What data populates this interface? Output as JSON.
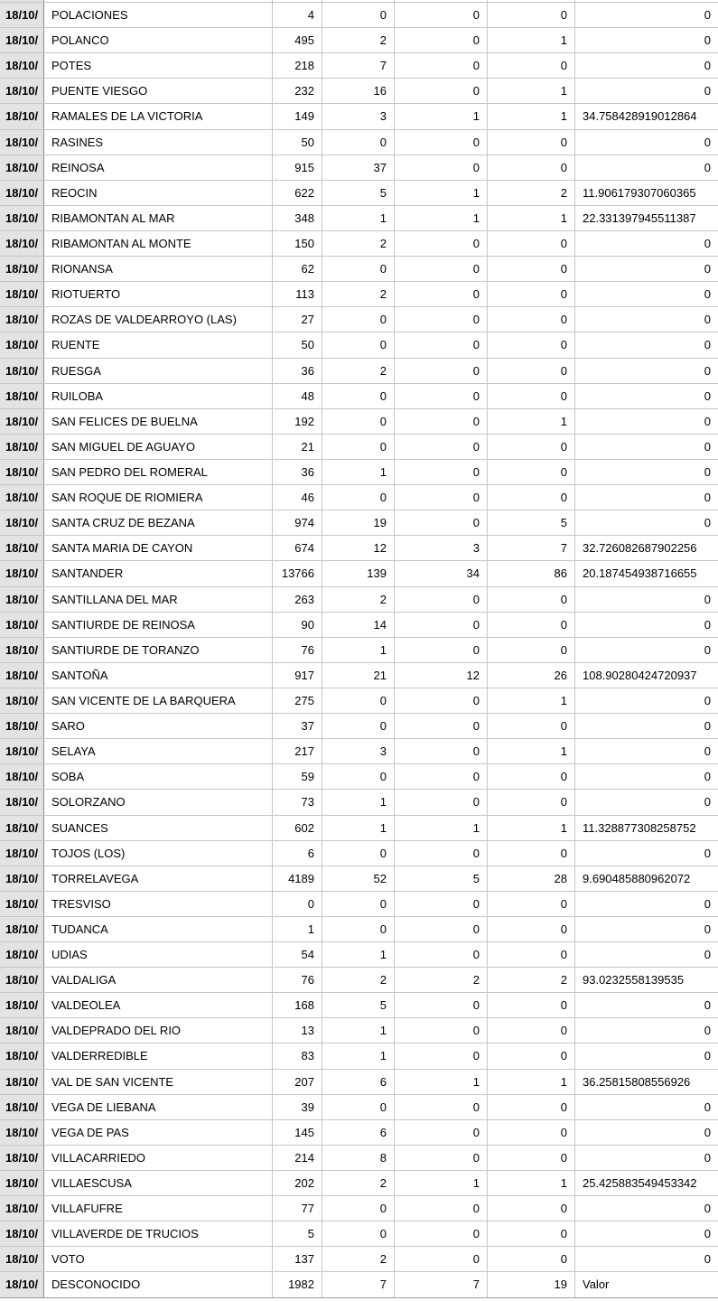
{
  "colors": {
    "bg": "#ffffff",
    "text": "#000000",
    "row_border": "#c6c6c6",
    "date_col_bg": "#e3e3e3",
    "date_col_border": "#8d8d8d",
    "bottom_edge_border": "#9a9a9a"
  },
  "table": {
    "rows": [
      {
        "date": "18/10/",
        "name": "POLACIONES",
        "values": [
          "4",
          "0",
          "0",
          "0",
          "0"
        ]
      },
      {
        "date": "18/10/",
        "name": "POLANCO",
        "values": [
          "495",
          "2",
          "0",
          "1",
          "0"
        ]
      },
      {
        "date": "18/10/",
        "name": "POTES",
        "values": [
          "218",
          "7",
          "0",
          "0",
          "0"
        ]
      },
      {
        "date": "18/10/",
        "name": "PUENTE VIESGO",
        "values": [
          "232",
          "16",
          "0",
          "1",
          "0"
        ]
      },
      {
        "date": "18/10/",
        "name": "RAMALES DE LA VICTORIA",
        "values": [
          "149",
          "3",
          "1",
          "1",
          "34.758428919012864"
        ]
      },
      {
        "date": "18/10/",
        "name": "RASINES",
        "values": [
          "50",
          "0",
          "0",
          "0",
          "0"
        ]
      },
      {
        "date": "18/10/",
        "name": "REINOSA",
        "values": [
          "915",
          "37",
          "0",
          "0",
          "0"
        ]
      },
      {
        "date": "18/10/",
        "name": "REOCIN",
        "values": [
          "622",
          "5",
          "1",
          "2",
          "11.906179307060365"
        ]
      },
      {
        "date": "18/10/",
        "name": "RIBAMONTAN AL MAR",
        "values": [
          "348",
          "1",
          "1",
          "1",
          "22.331397945511387"
        ]
      },
      {
        "date": "18/10/",
        "name": "RIBAMONTAN AL MONTE",
        "values": [
          "150",
          "2",
          "0",
          "0",
          "0"
        ]
      },
      {
        "date": "18/10/",
        "name": "RIONANSA",
        "values": [
          "62",
          "0",
          "0",
          "0",
          "0"
        ]
      },
      {
        "date": "18/10/",
        "name": "RIOTUERTO",
        "values": [
          "113",
          "2",
          "0",
          "0",
          "0"
        ]
      },
      {
        "date": "18/10/",
        "name": "ROZAS DE VALDEARROYO (LAS)",
        "values": [
          "27",
          "0",
          "0",
          "0",
          "0"
        ]
      },
      {
        "date": "18/10/",
        "name": "RUENTE",
        "values": [
          "50",
          "0",
          "0",
          "0",
          "0"
        ]
      },
      {
        "date": "18/10/",
        "name": "RUESGA",
        "values": [
          "36",
          "2",
          "0",
          "0",
          "0"
        ]
      },
      {
        "date": "18/10/",
        "name": "RUILOBA",
        "values": [
          "48",
          "0",
          "0",
          "0",
          "0"
        ]
      },
      {
        "date": "18/10/",
        "name": "SAN FELICES DE BUELNA",
        "values": [
          "192",
          "0",
          "0",
          "1",
          "0"
        ]
      },
      {
        "date": "18/10/",
        "name": "SAN MIGUEL DE AGUAYO",
        "values": [
          "21",
          "0",
          "0",
          "0",
          "0"
        ]
      },
      {
        "date": "18/10/",
        "name": "SAN PEDRO DEL ROMERAL",
        "values": [
          "36",
          "1",
          "0",
          "0",
          "0"
        ]
      },
      {
        "date": "18/10/",
        "name": "SAN ROQUE DE RIOMIERA",
        "values": [
          "46",
          "0",
          "0",
          "0",
          "0"
        ]
      },
      {
        "date": "18/10/",
        "name": "SANTA CRUZ DE BEZANA",
        "values": [
          "974",
          "19",
          "0",
          "5",
          "0"
        ]
      },
      {
        "date": "18/10/",
        "name": "SANTA MARIA DE CAYON",
        "values": [
          "674",
          "12",
          "3",
          "7",
          "32.726082687902256"
        ]
      },
      {
        "date": "18/10/",
        "name": "SANTANDER",
        "values": [
          "13766",
          "139",
          "34",
          "86",
          "20.187454938716655"
        ]
      },
      {
        "date": "18/10/",
        "name": "SANTILLANA DEL MAR",
        "values": [
          "263",
          "2",
          "0",
          "0",
          "0"
        ]
      },
      {
        "date": "18/10/",
        "name": "SANTIURDE DE REINOSA",
        "values": [
          "90",
          "14",
          "0",
          "0",
          "0"
        ]
      },
      {
        "date": "18/10/",
        "name": "SANTIURDE DE TORANZO",
        "values": [
          "76",
          "1",
          "0",
          "0",
          "0"
        ]
      },
      {
        "date": "18/10/",
        "name": "SANTOÑA",
        "values": [
          "917",
          "21",
          "12",
          "26",
          "108.90280424720937"
        ]
      },
      {
        "date": "18/10/",
        "name": "SAN VICENTE DE LA BARQUERA",
        "values": [
          "275",
          "0",
          "0",
          "1",
          "0"
        ]
      },
      {
        "date": "18/10/",
        "name": "SARO",
        "values": [
          "37",
          "0",
          "0",
          "0",
          "0"
        ]
      },
      {
        "date": "18/10/",
        "name": "SELAYA",
        "values": [
          "217",
          "3",
          "0",
          "1",
          "0"
        ]
      },
      {
        "date": "18/10/",
        "name": "SOBA",
        "values": [
          "59",
          "0",
          "0",
          "0",
          "0"
        ]
      },
      {
        "date": "18/10/",
        "name": "SOLORZANO",
        "values": [
          "73",
          "1",
          "0",
          "0",
          "0"
        ]
      },
      {
        "date": "18/10/",
        "name": "SUANCES",
        "values": [
          "602",
          "1",
          "1",
          "1",
          "11.328877308258752"
        ]
      },
      {
        "date": "18/10/",
        "name": "TOJOS (LOS)",
        "values": [
          "6",
          "0",
          "0",
          "0",
          "0"
        ]
      },
      {
        "date": "18/10/",
        "name": "TORRELAVEGA",
        "values": [
          "4189",
          "52",
          "5",
          "28",
          "9.690485880962072"
        ]
      },
      {
        "date": "18/10/",
        "name": "TRESVISO",
        "values": [
          "0",
          "0",
          "0",
          "0",
          "0"
        ]
      },
      {
        "date": "18/10/",
        "name": "TUDANCA",
        "values": [
          "1",
          "0",
          "0",
          "0",
          "0"
        ]
      },
      {
        "date": "18/10/",
        "name": "UDIAS",
        "values": [
          "54",
          "1",
          "0",
          "0",
          "0"
        ]
      },
      {
        "date": "18/10/",
        "name": "VALDALIGA",
        "values": [
          "76",
          "2",
          "2",
          "2",
          "93.0232558139535"
        ]
      },
      {
        "date": "18/10/",
        "name": "VALDEOLEA",
        "values": [
          "168",
          "5",
          "0",
          "0",
          "0"
        ]
      },
      {
        "date": "18/10/",
        "name": "VALDEPRADO DEL RIO",
        "values": [
          "13",
          "1",
          "0",
          "0",
          "0"
        ]
      },
      {
        "date": "18/10/",
        "name": "VALDERREDIBLE",
        "values": [
          "83",
          "1",
          "0",
          "0",
          "0"
        ]
      },
      {
        "date": "18/10/",
        "name": "VAL DE SAN VICENTE",
        "values": [
          "207",
          "6",
          "1",
          "1",
          "36.25815808556926"
        ]
      },
      {
        "date": "18/10/",
        "name": "VEGA DE LIEBANA",
        "values": [
          "39",
          "0",
          "0",
          "0",
          "0"
        ]
      },
      {
        "date": "18/10/",
        "name": "VEGA DE PAS",
        "values": [
          "145",
          "6",
          "0",
          "0",
          "0"
        ]
      },
      {
        "date": "18/10/",
        "name": "VILLACARRIEDO",
        "values": [
          "214",
          "8",
          "0",
          "0",
          "0"
        ]
      },
      {
        "date": "18/10/",
        "name": "VILLAESCUSA",
        "values": [
          "202",
          "2",
          "1",
          "1",
          "25.425883549453342"
        ]
      },
      {
        "date": "18/10/",
        "name": "VILLAFUFRE",
        "values": [
          "77",
          "0",
          "0",
          "0",
          "0"
        ]
      },
      {
        "date": "18/10/",
        "name": "VILLAVERDE DE TRUCIOS",
        "values": [
          "5",
          "0",
          "0",
          "0",
          "0"
        ]
      },
      {
        "date": "18/10/",
        "name": "VOTO",
        "values": [
          "137",
          "2",
          "0",
          "0",
          "0"
        ]
      },
      {
        "date": "18/10/",
        "name": "DESCONOCIDO",
        "values": [
          "1982",
          "7",
          "7",
          "19",
          "Valor"
        ]
      }
    ]
  }
}
